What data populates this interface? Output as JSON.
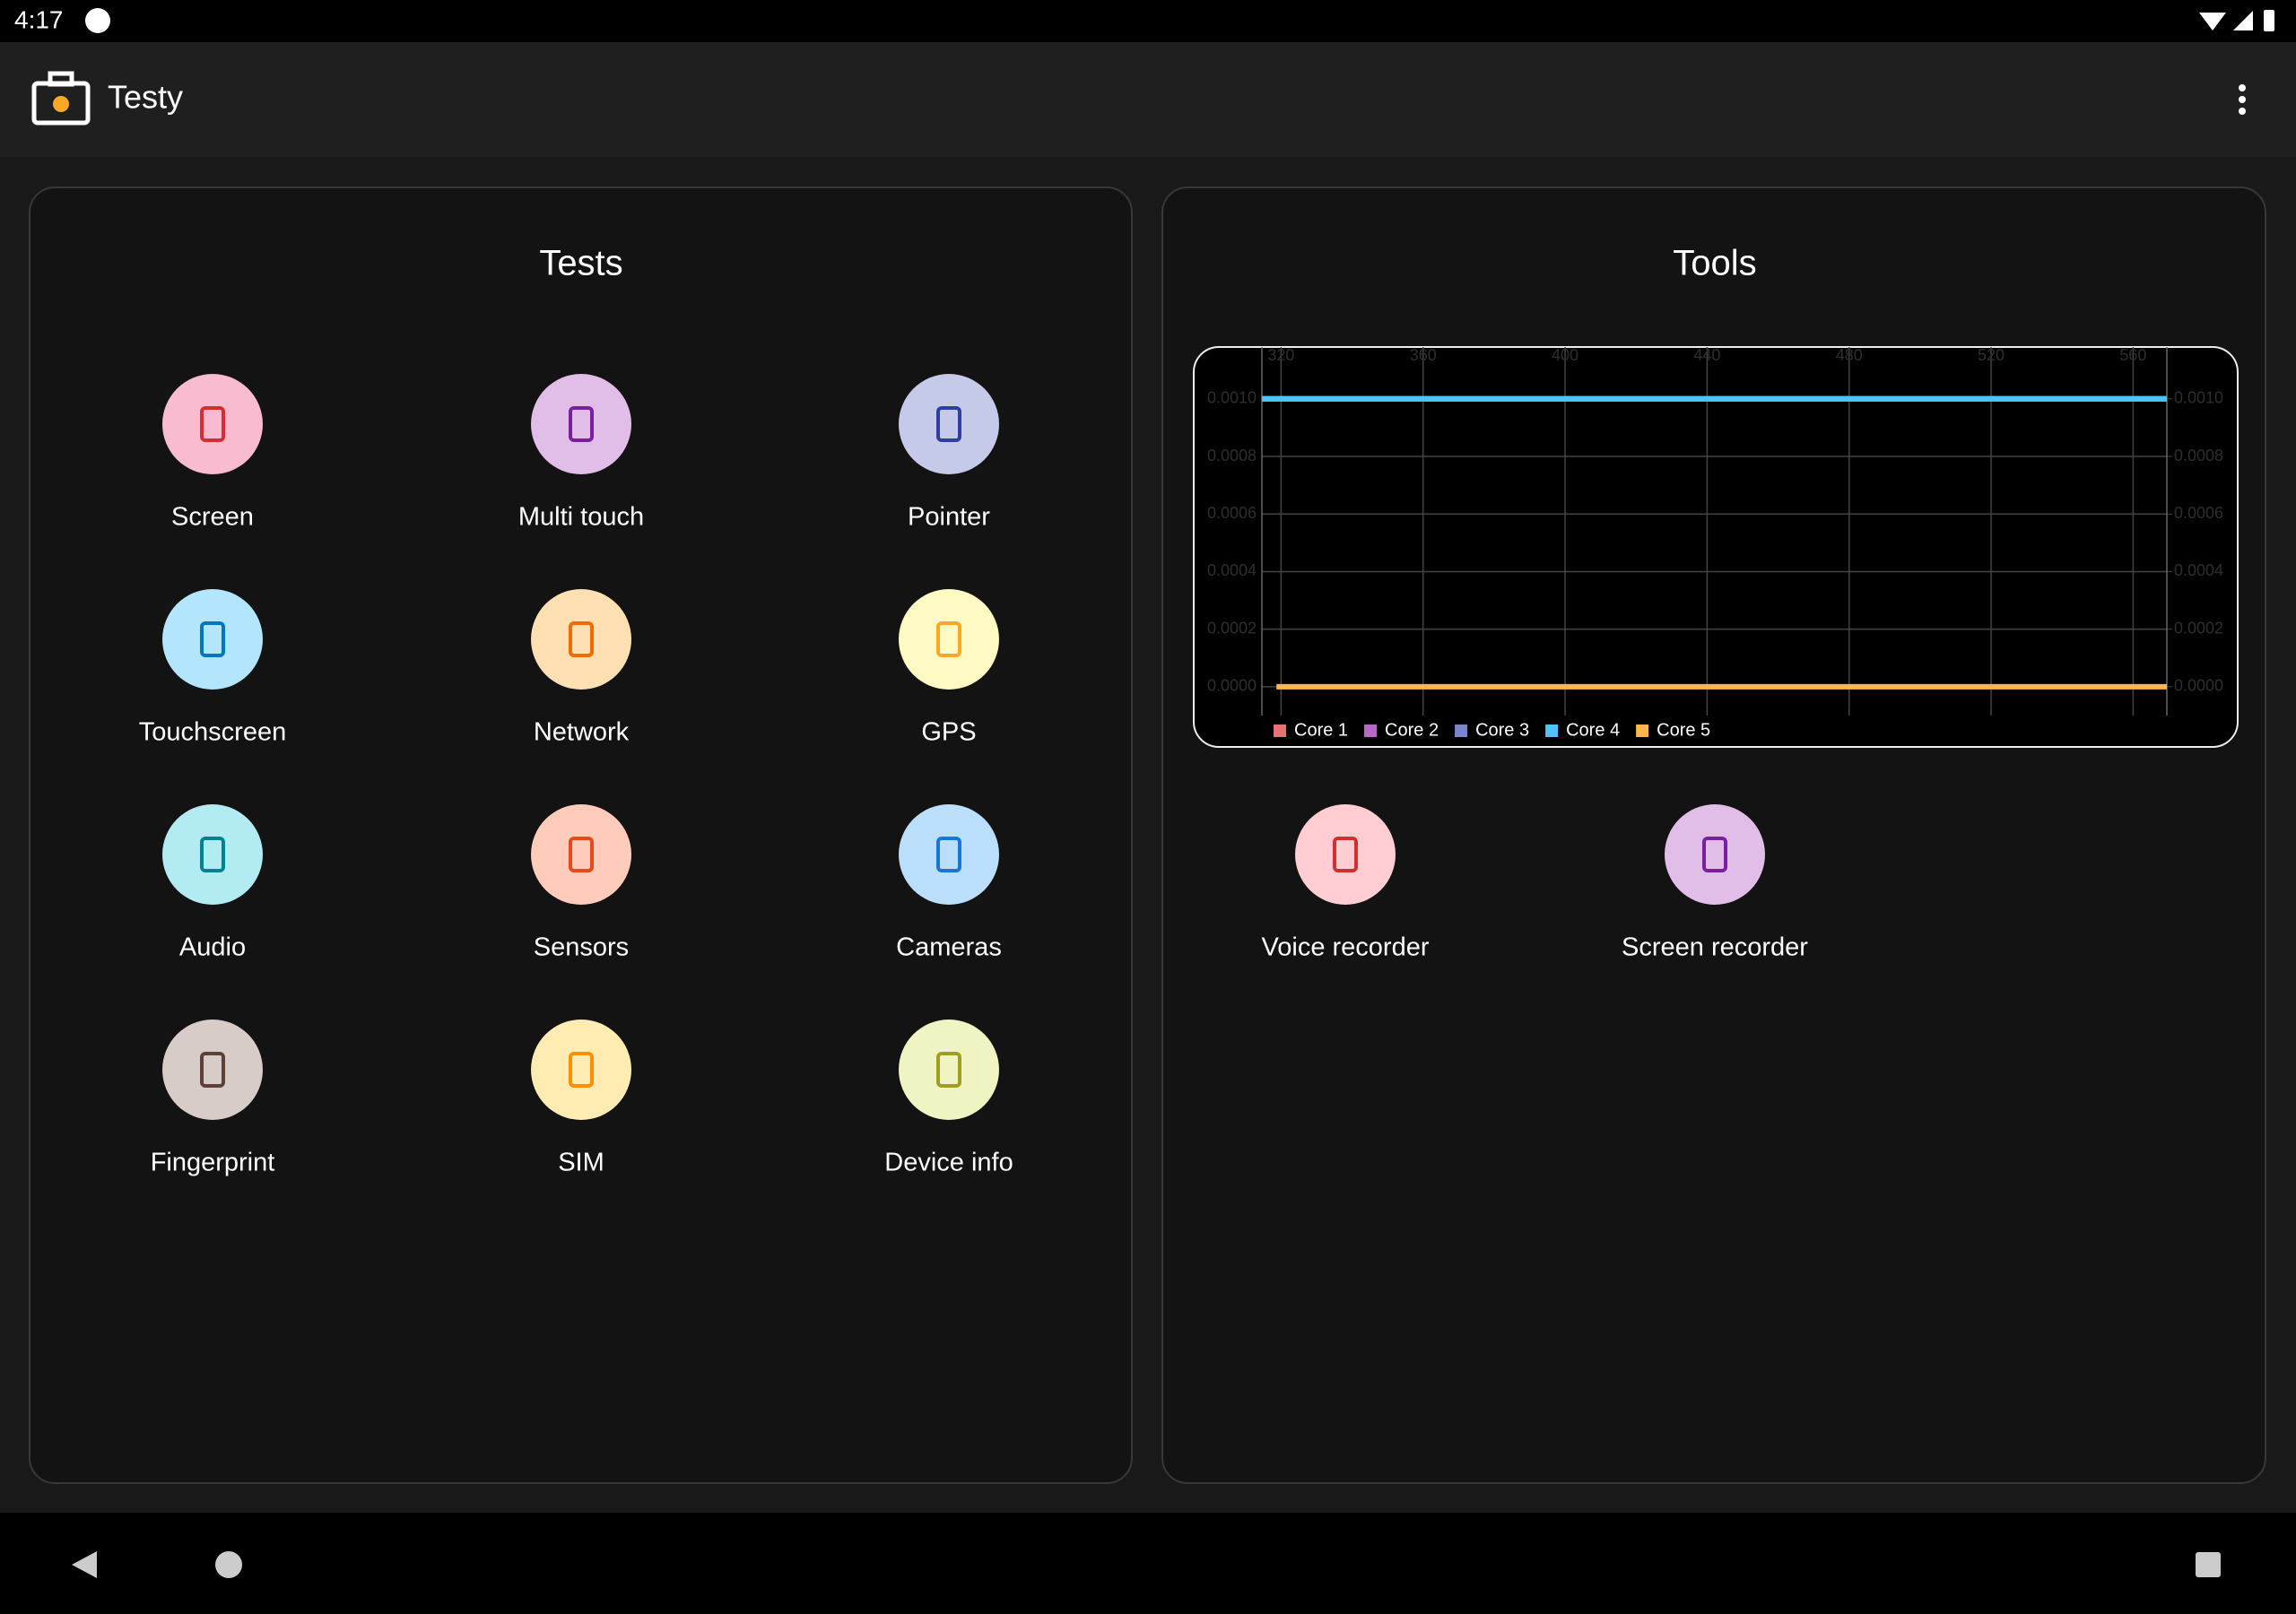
{
  "status_bar": {
    "time": "4:17"
  },
  "app_bar": {
    "title": "Testy"
  },
  "tests": {
    "title": "Tests",
    "items": [
      "Screen",
      "Multi touch",
      "Pointer",
      "Touchscreen",
      "Network",
      "GPS",
      "Audio",
      "Sensors",
      "Cameras",
      "Fingerprint",
      "SIM",
      "Device info"
    ]
  },
  "tools": {
    "title": "Tools",
    "items": [
      "Voice recorder",
      "Screen recorder"
    ]
  },
  "chart_data": {
    "type": "line",
    "x": [
      314.6,
      318.7,
      569.5
    ],
    "xlim": [
      314.6,
      569.5
    ],
    "xticks": [
      320,
      360,
      400,
      440,
      480,
      520,
      560
    ],
    "ylim": [
      -0.0001,
      0.00118
    ],
    "yticks": [
      {
        "value": 0,
        "label": "0.0000"
      },
      {
        "value": 0.0002,
        "label": "0.0002"
      },
      {
        "value": 0.0004,
        "label": "0.0004"
      },
      {
        "value": 0.0006,
        "label": "0.0006"
      },
      {
        "value": 0.0008,
        "label": "0.0008"
      },
      {
        "value": 0.001,
        "label": "0.0010"
      }
    ],
    "y2lim": [
      -0.0001,
      0.00118
    ],
    "y2ticks": [
      {
        "value": 0,
        "label": "0.0000"
      },
      {
        "value": 0.0002,
        "label": "0.0002"
      },
      {
        "value": 0.0004,
        "label": "0.0004"
      },
      {
        "value": 0.0006,
        "label": "0.0006"
      },
      {
        "value": 0.0008,
        "label": "0.0008"
      },
      {
        "value": 0.001,
        "label": "0.0010"
      }
    ],
    "grid": true,
    "legend": "bottom-left",
    "series": [
      {
        "name": "Core 1",
        "color": "#e57373",
        "values": [
          0.001,
          0.001,
          0.001
        ]
      },
      {
        "name": "Core 2",
        "color": "#ba68c8",
        "values": [
          0.001,
          0.001,
          0.001
        ]
      },
      {
        "name": "Core 3",
        "color": "#7986cb",
        "values": [
          0.001,
          0.001,
          0.001
        ]
      },
      {
        "name": "Core 4",
        "color": "#4fc3f7",
        "values": [
          0.001,
          0.001,
          0.001
        ]
      },
      {
        "name": "Core 5",
        "color": "#ffb74d",
        "values": [
          null,
          0,
          0
        ]
      }
    ]
  }
}
